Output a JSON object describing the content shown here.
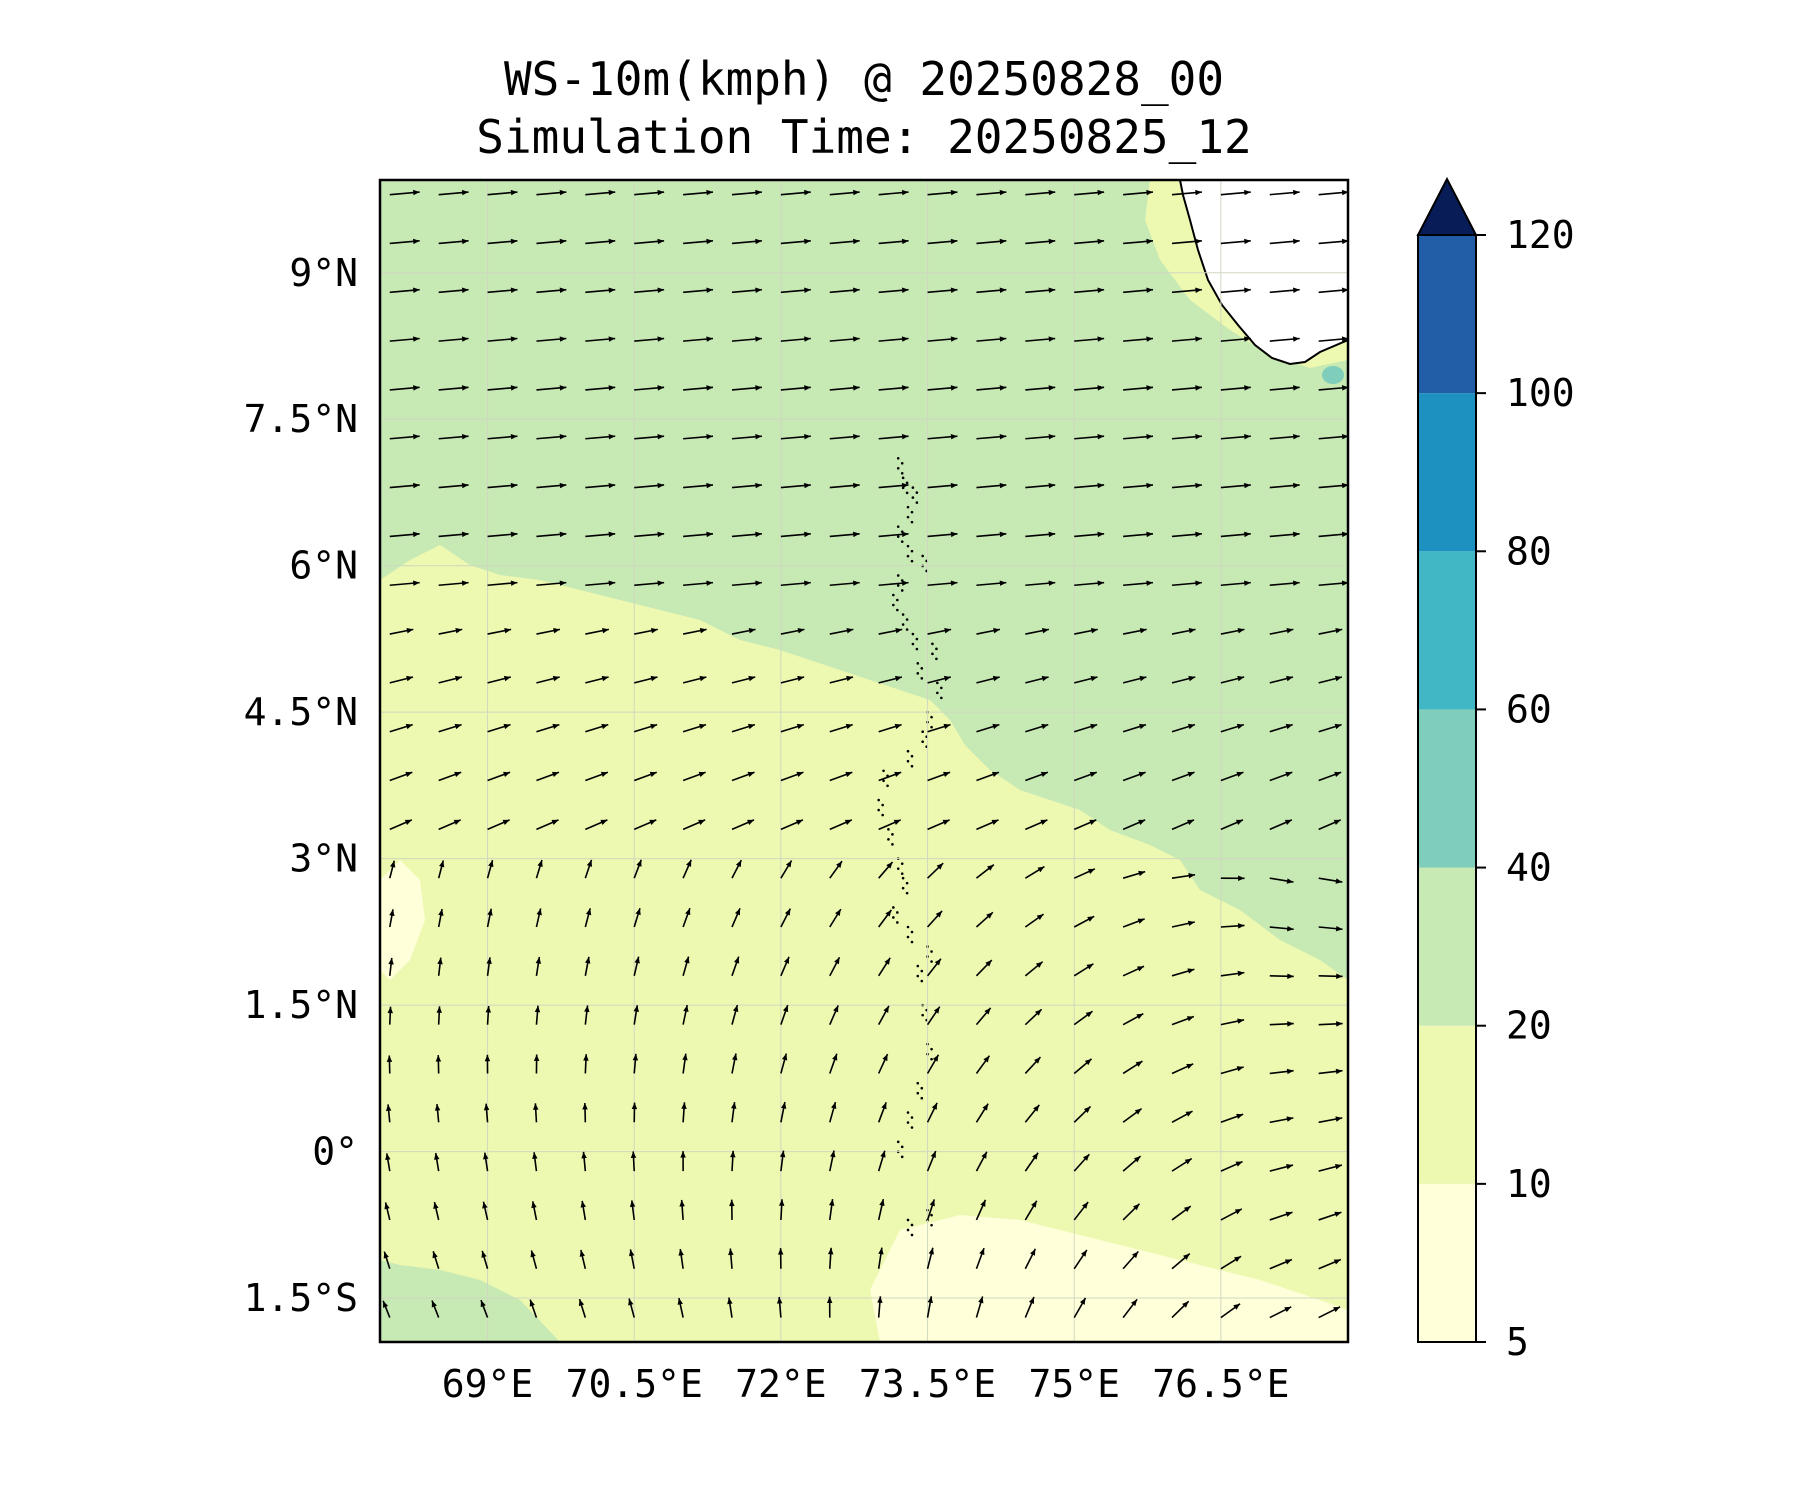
{
  "title": {
    "line1": "WS-10m(kmph) @ 20250828_00",
    "line2": "Simulation Time: 20250825_12"
  },
  "axes": {
    "lon_labels": [
      "69°E",
      "70.5°E",
      "72°E",
      "73.5°E",
      "75°E",
      "76.5°E"
    ],
    "lon_values": [
      69,
      70.5,
      72,
      73.5,
      75,
      76.5
    ],
    "lat_labels": [
      "9°N",
      "7.5°N",
      "6°N",
      "4.5°N",
      "3°N",
      "1.5°N",
      "0°",
      "1.5°S"
    ],
    "lat_values": [
      9,
      7.5,
      6,
      4.5,
      3,
      1.5,
      0,
      -1.5
    ],
    "lon_range": [
      67.9,
      77.8
    ],
    "lat_range": [
      -1.95,
      9.95
    ],
    "grid": true
  },
  "colorbar": {
    "levels": [
      5,
      10,
      20,
      40,
      60,
      80,
      100,
      120
    ],
    "tick_labels": [
      "5",
      "10",
      "20",
      "40",
      "60",
      "80",
      "100",
      "120"
    ],
    "colors": [
      "#ffffd9",
      "#edf8b1",
      "#c7e9b4",
      "#7fcdbb",
      "#41b6c4",
      "#1d91c0",
      "#225ea8",
      "#0c2c84"
    ],
    "extend": "max",
    "extend_color": "#081d58"
  },
  "field_colors": {
    "band_5_10": "#ffffd9",
    "band_10_20": "#edf8b1",
    "band_20_40": "#c7e9b4",
    "band_40_60": "#7fcdbb",
    "land": "#ffffff",
    "coast": "#000000",
    "arrow": "#000000"
  }
}
